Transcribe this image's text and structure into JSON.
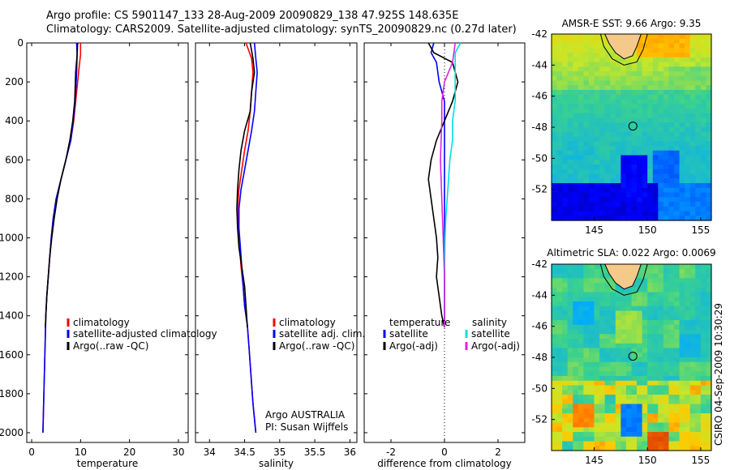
{
  "header": {
    "line1": "Argo profile: CS 5901147_133 28-Aug-2009 20090829_138 47.925S 148.635E",
    "line2": "Climatology: CARS2009. Satellite-adjusted climatology: synTS_20090829.nc (0.27d later)"
  },
  "colors": {
    "climatology": "#ff0000",
    "satellite": "#0000ff",
    "argo": "#000000",
    "sal_satellite": "#00e0e0",
    "sal_argo": "#e020e0"
  },
  "chart_data": [
    {
      "type": "line",
      "name": "temperature-profile",
      "xlabel": "temperature",
      "xlim": [
        -1,
        32
      ],
      "xticks": [
        0,
        10,
        20,
        30
      ],
      "ylim": [
        2050,
        0
      ],
      "yticks": [
        0,
        200,
        400,
        600,
        800,
        1000,
        1200,
        1400,
        1600,
        1800,
        2000
      ],
      "legend": [
        "climatology",
        "satellite-adjusted climatology",
        "Argo(..raw -QC)"
      ],
      "legend_position": "lower-right",
      "series": [
        {
          "name": "climatology",
          "color": "#ff0000",
          "points": [
            [
              10.0,
              0
            ],
            [
              10.0,
              60
            ],
            [
              9.6,
              150
            ],
            [
              9.0,
              300
            ],
            [
              8.6,
              400
            ],
            [
              8.0,
              500
            ],
            [
              7.0,
              600
            ],
            [
              6.0,
              700
            ],
            [
              5.0,
              800
            ],
            [
              4.4,
              900
            ],
            [
              4.0,
              1000
            ],
            [
              3.7,
              1100
            ],
            [
              3.4,
              1200
            ],
            [
              3.1,
              1300
            ],
            [
              2.9,
              1400
            ],
            [
              2.8,
              1500
            ],
            [
              2.7,
              1600
            ],
            [
              2.6,
              1700
            ],
            [
              2.5,
              1800
            ],
            [
              2.4,
              1900
            ],
            [
              2.3,
              2000
            ]
          ]
        },
        {
          "name": "satellite-adjusted climatology",
          "color": "#0000ff",
          "points": [
            [
              9.2,
              0
            ],
            [
              9.3,
              60
            ],
            [
              9.2,
              150
            ],
            [
              8.9,
              300
            ],
            [
              8.5,
              400
            ],
            [
              8.0,
              500
            ],
            [
              7.0,
              600
            ],
            [
              6.0,
              700
            ],
            [
              5.0,
              800
            ],
            [
              4.4,
              900
            ],
            [
              4.0,
              1000
            ],
            [
              3.7,
              1100
            ],
            [
              3.4,
              1200
            ],
            [
              3.1,
              1300
            ],
            [
              2.9,
              1400
            ],
            [
              2.8,
              1500
            ],
            [
              2.7,
              1600
            ],
            [
              2.6,
              1700
            ],
            [
              2.5,
              1800
            ],
            [
              2.4,
              1900
            ],
            [
              2.3,
              2000
            ]
          ]
        },
        {
          "name": "Argo(..raw -QC)",
          "color": "#000000",
          "points": [
            [
              9.4,
              0
            ],
            [
              9.3,
              60
            ],
            [
              9.0,
              150
            ],
            [
              8.8,
              300
            ],
            [
              8.4,
              400
            ],
            [
              7.8,
              500
            ],
            [
              7.0,
              600
            ],
            [
              6.0,
              700
            ],
            [
              5.2,
              800
            ],
            [
              4.6,
              900
            ],
            [
              4.1,
              1000
            ],
            [
              3.7,
              1100
            ],
            [
              3.4,
              1200
            ],
            [
              3.1,
              1300
            ],
            [
              2.9,
              1400
            ],
            [
              2.8,
              1460
            ]
          ]
        }
      ]
    },
    {
      "type": "line",
      "name": "salinity-profile",
      "xlabel": "salinity",
      "xlim": [
        33.8,
        36.1
      ],
      "xticks": [
        34,
        34.5,
        35,
        35.5,
        36
      ],
      "ylim": [
        2050,
        0
      ],
      "legend": [
        "climatology",
        "satellite adj. clim.",
        "Argo(..raw -QC)"
      ],
      "legend_position": "lower-right",
      "annotation": [
        "Argo AUSTRALIA",
        "PI: Susan Wijffels"
      ],
      "series": [
        {
          "name": "climatology",
          "color": "#ff0000",
          "points": [
            [
              34.52,
              0
            ],
            [
              34.6,
              80
            ],
            [
              34.62,
              150
            ],
            [
              34.6,
              250
            ],
            [
              34.58,
              350
            ],
            [
              34.55,
              450
            ],
            [
              34.5,
              550
            ],
            [
              34.46,
              650
            ],
            [
              34.42,
              750
            ],
            [
              34.4,
              850
            ],
            [
              34.41,
              950
            ],
            [
              34.43,
              1050
            ],
            [
              34.45,
              1150
            ],
            [
              34.48,
              1250
            ],
            [
              34.5,
              1350
            ],
            [
              34.54,
              1450
            ],
            [
              34.56,
              1550
            ],
            [
              34.58,
              1650
            ],
            [
              34.6,
              1750
            ],
            [
              34.62,
              1850
            ],
            [
              34.66,
              2000
            ]
          ]
        },
        {
          "name": "satellite adj. clim.",
          "color": "#0000ff",
          "points": [
            [
              34.64,
              0
            ],
            [
              34.66,
              80
            ],
            [
              34.68,
              150
            ],
            [
              34.66,
              250
            ],
            [
              34.64,
              350
            ],
            [
              34.6,
              450
            ],
            [
              34.55,
              550
            ],
            [
              34.5,
              650
            ],
            [
              34.45,
              750
            ],
            [
              34.42,
              850
            ],
            [
              34.42,
              950
            ],
            [
              34.44,
              1050
            ],
            [
              34.46,
              1150
            ],
            [
              34.48,
              1250
            ],
            [
              34.5,
              1350
            ],
            [
              34.54,
              1450
            ],
            [
              34.56,
              1550
            ],
            [
              34.58,
              1650
            ],
            [
              34.6,
              1750
            ],
            [
              34.62,
              1850
            ],
            [
              34.66,
              2000
            ]
          ]
        },
        {
          "name": "Argo(..raw -QC)",
          "color": "#000000",
          "points": [
            [
              34.58,
              0
            ],
            [
              34.62,
              80
            ],
            [
              34.64,
              150
            ],
            [
              34.6,
              250
            ],
            [
              34.58,
              350
            ],
            [
              34.5,
              450
            ],
            [
              34.45,
              550
            ],
            [
              34.42,
              650
            ],
            [
              34.4,
              750
            ],
            [
              34.39,
              850
            ],
            [
              34.4,
              950
            ],
            [
              34.42,
              1050
            ],
            [
              34.46,
              1150
            ],
            [
              34.5,
              1250
            ],
            [
              34.52,
              1350
            ],
            [
              34.54,
              1460
            ]
          ]
        }
      ]
    },
    {
      "type": "line",
      "name": "difference-profile",
      "xlabel": "difference from climatology",
      "xlim": [
        -3,
        3
      ],
      "xticks": [
        -2,
        0,
        2
      ],
      "ylim": [
        2050,
        0
      ],
      "legend": [
        "temperature",
        "satellite",
        "Argo(-adj)",
        "salinity",
        "satellite",
        "Argo(-adj)"
      ],
      "legend_position": "lower-center",
      "series": [
        {
          "name": "temperature satellite",
          "color": "#0000ff",
          "points": [
            [
              -0.4,
              0
            ],
            [
              -0.5,
              50
            ],
            [
              -0.3,
              100
            ],
            [
              -0.2,
              200
            ],
            [
              0.0,
              300
            ],
            [
              0.0,
              400
            ],
            [
              0.0,
              600
            ],
            [
              0.0,
              800
            ],
            [
              0.0,
              1000
            ],
            [
              0.0,
              1200
            ],
            [
              0.0,
              1450
            ]
          ]
        },
        {
          "name": "temperature Argo(-adj)",
          "color": "#000000",
          "points": [
            [
              -0.6,
              0
            ],
            [
              -0.4,
              50
            ],
            [
              0.3,
              100
            ],
            [
              0.5,
              200
            ],
            [
              0.3,
              300
            ],
            [
              0.0,
              400
            ],
            [
              -0.3,
              500
            ],
            [
              -0.5,
              600
            ],
            [
              -0.6,
              700
            ],
            [
              -0.5,
              800
            ],
            [
              -0.4,
              900
            ],
            [
              -0.3,
              1000
            ],
            [
              -0.25,
              1100
            ],
            [
              -0.3,
              1200
            ],
            [
              -0.2,
              1300
            ],
            [
              -0.1,
              1400
            ],
            [
              0.0,
              1460
            ]
          ]
        },
        {
          "name": "salinity satellite",
          "color": "#00e0e0",
          "points": [
            [
              0.6,
              0
            ],
            [
              0.4,
              50
            ],
            [
              0.4,
              100
            ],
            [
              0.4,
              200
            ],
            [
              0.4,
              300
            ],
            [
              0.3,
              400
            ],
            [
              0.3,
              500
            ],
            [
              0.2,
              600
            ],
            [
              0.15,
              700
            ],
            [
              0.1,
              800
            ],
            [
              0.05,
              900
            ],
            [
              0.02,
              1000
            ],
            [
              0.0,
              1200
            ],
            [
              0.0,
              1450
            ]
          ]
        },
        {
          "name": "salinity Argo(-adj)",
          "color": "#e020e0",
          "points": [
            [
              0.4,
              0
            ],
            [
              0.3,
              100
            ],
            [
              0.0,
              200
            ],
            [
              -0.1,
              300
            ],
            [
              -0.1,
              400
            ],
            [
              -0.15,
              600
            ],
            [
              -0.1,
              800
            ],
            [
              -0.05,
              1000
            ],
            [
              0.0,
              1200
            ],
            [
              0.0,
              1300
            ],
            [
              0.0,
              1460
            ]
          ]
        }
      ]
    },
    {
      "type": "heatmap",
      "name": "amsre-sst-map",
      "title": "AMSR-E SST: 9.66  Argo: 9.35",
      "xticks": [
        145,
        150,
        155
      ],
      "yticks": [
        -42,
        -44,
        -46,
        -48,
        -50,
        -52
      ],
      "xlim": [
        141,
        156
      ],
      "ylim": [
        -54,
        -42
      ],
      "marker": [
        148.635,
        -47.925
      ]
    },
    {
      "type": "heatmap",
      "name": "altimetric-sla-map",
      "title": "Altimetric SLA: 0.022  Argo: 0.0069",
      "xticks": [
        145,
        150,
        155
      ],
      "yticks": [
        -42,
        -44,
        -46,
        -48,
        -50,
        -52
      ],
      "xlim": [
        141,
        156
      ],
      "ylim": [
        -54,
        -42
      ],
      "marker": [
        148.635,
        -47.925
      ]
    }
  ],
  "footer": {
    "stamp": "CSIRO 04-Sep-2009 10:30:29"
  }
}
